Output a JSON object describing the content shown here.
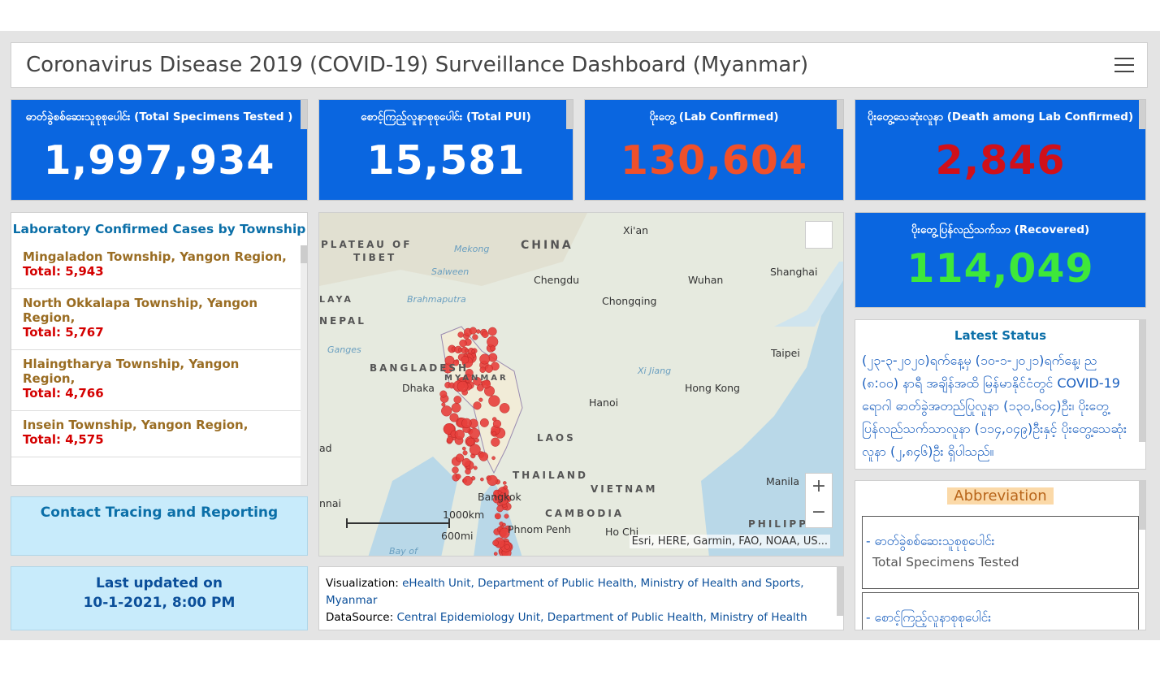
{
  "header": {
    "title": "Coronavirus Disease 2019 (COVID-19) Surveillance Dashboard (Myanmar)"
  },
  "cards": [
    {
      "title": "ဓာတ်ခွဲစစ်ဆေးသူစုစုပေါင်း (Total Specimens Tested )",
      "value": "1,997,934",
      "color": "#ffffff"
    },
    {
      "title": "စောင့်ကြည့်လူနာစုစုပေါင်း (Total PUI)",
      "value": "15,581",
      "color": "#ffffff"
    },
    {
      "title": "ပိုးတွေ့ (Lab Confirmed)",
      "value": "130,604",
      "color": "#f0502a"
    },
    {
      "title": "ပိုးတွေ့သေဆုံးလူနာ (Death among Lab Confirmed)",
      "value": "2,846",
      "color": "#d0101a"
    },
    {
      "title": "ပိုးတွေ့ပြန်လည်သက်သာ (Recovered)",
      "value": "114,049",
      "color": "#3ee83a"
    }
  ],
  "township_list": {
    "title": "Laboratory Confirmed Cases by Township",
    "items": [
      {
        "name": "Mingaladon Township, Yangon Region,",
        "total": "Total: 5,943"
      },
      {
        "name": "North Okkalapa Township, Yangon Region,",
        "total": "Total: 5,767"
      },
      {
        "name": "Hlaingtharya Township, Yangon Region,",
        "total": "Total: 4,766"
      },
      {
        "name": "Insein Township, Yangon Region,",
        "total": "Total: 4,575"
      }
    ]
  },
  "contact": "Contact Tracing and Reporting",
  "last_updated": {
    "label": "Last updated on",
    "date": "10-1-2021, 8:00 PM"
  },
  "map": {
    "labels": [
      "PLATEAU OF",
      "TIBET",
      "CHINA",
      "Xi'an",
      "Chengdu",
      "Wuhan",
      "Shanghai",
      "Chongqing",
      "Salween",
      "Mekong",
      "Brahmaputra",
      "Ganges",
      "NEPAL",
      "BANGLADESH",
      "Dhaka",
      "MYANMAR",
      "Xi Jiang",
      "Hanoi",
      "Hong Kong",
      "Taipei",
      "LAOS",
      "THAILAND",
      "Bangkok",
      "VIETNAM",
      "CAMBODIA",
      "Phnom Penh",
      "Ho Chi",
      "Manila",
      "PHILIPPI",
      "Bay of",
      "ad",
      "nnai",
      "LAYA"
    ],
    "scale": [
      "1000km",
      "600mi"
    ],
    "attribution": "Esri, HERE, Garmin, FAO, NOAA, US..."
  },
  "credits": {
    "visualization_label": "Visualization:",
    "visualization": "eHealth Unit, Department of Public Health, Ministry of Health and Sports, Myanmar",
    "source_label": "DataSource:",
    "source": "Central Epidemiology Unit, Department of Public Health, Ministry of Health"
  },
  "latest_status": {
    "title": "Latest Status",
    "text": "(၂၃-၃-၂၀၂၀)ရက်နေ့မှ (၁၀-၁-၂၀၂၁)ရက်နေ့၊ ည (၈:၀၀) နာရီ အချိန်အထိ မြန်မာနိုင်ငံတွင် COVID-19 ရောဂါ ဓာတ်ခွဲအတည်ပြုလူနာ (၁၃၀,၆၀၄)ဦး၊ ပိုးတွေ့ပြန်လည်သက်သာလူနာ (၁၁၄,၀၄၉)ဦးနှင့် ပိုးတွေ့သေဆုံးလူနာ (၂,၈၄၆)ဦး ရှိပါသည်။"
  },
  "abbreviation": {
    "title": "Abbreviation",
    "items": [
      {
        "term": "- ဓာတ်ခွဲစစ်ဆေးသူစုစုပေါင်း",
        "meaning": "Total Specimens Tested"
      },
      {
        "term": "- စောင့်ကြည့်လူနာစုစုပေါင်း"
      }
    ]
  }
}
